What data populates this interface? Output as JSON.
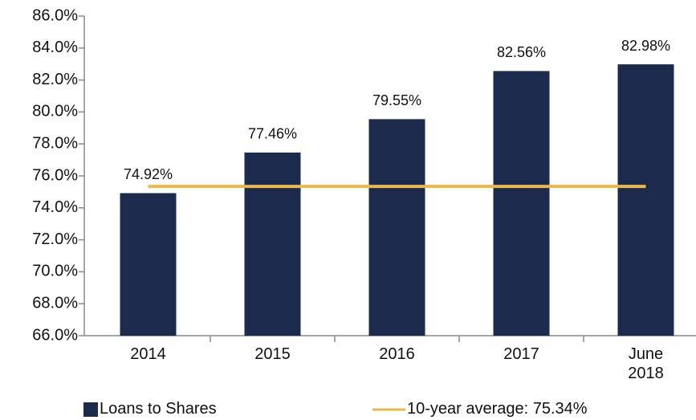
{
  "chart_data": {
    "type": "bar",
    "categories": [
      "2014",
      "2015",
      "2016",
      "2017",
      "June 2018"
    ],
    "series": [
      {
        "name": "Loans to Shares",
        "color": "#1c2b4d",
        "values": [
          74.92,
          77.46,
          79.55,
          82.56,
          82.98
        ],
        "value_labels": [
          "74.92%",
          "77.46%",
          "79.55%",
          "82.56%",
          "82.98%"
        ]
      }
    ],
    "average": {
      "name": "10-year average: 75.34%",
      "value": 75.34,
      "color": "#e8b84a"
    },
    "ylim": [
      66,
      86
    ],
    "yticks": [
      {
        "value": 66,
        "label": "66.0%"
      },
      {
        "value": 68,
        "label": "68.0%"
      },
      {
        "value": 70,
        "label": "70.0%"
      },
      {
        "value": 72,
        "label": "72.0%"
      },
      {
        "value": 74,
        "label": "74.0%"
      },
      {
        "value": 76,
        "label": "76.0%"
      },
      {
        "value": 78,
        "label": "78.0%"
      },
      {
        "value": 80,
        "label": "80.0%"
      },
      {
        "value": 82,
        "label": "82.0%"
      },
      {
        "value": 84,
        "label": "84.0%"
      },
      {
        "value": 86,
        "label": "86.0%"
      }
    ],
    "grid": false,
    "legend": "bottom"
  }
}
